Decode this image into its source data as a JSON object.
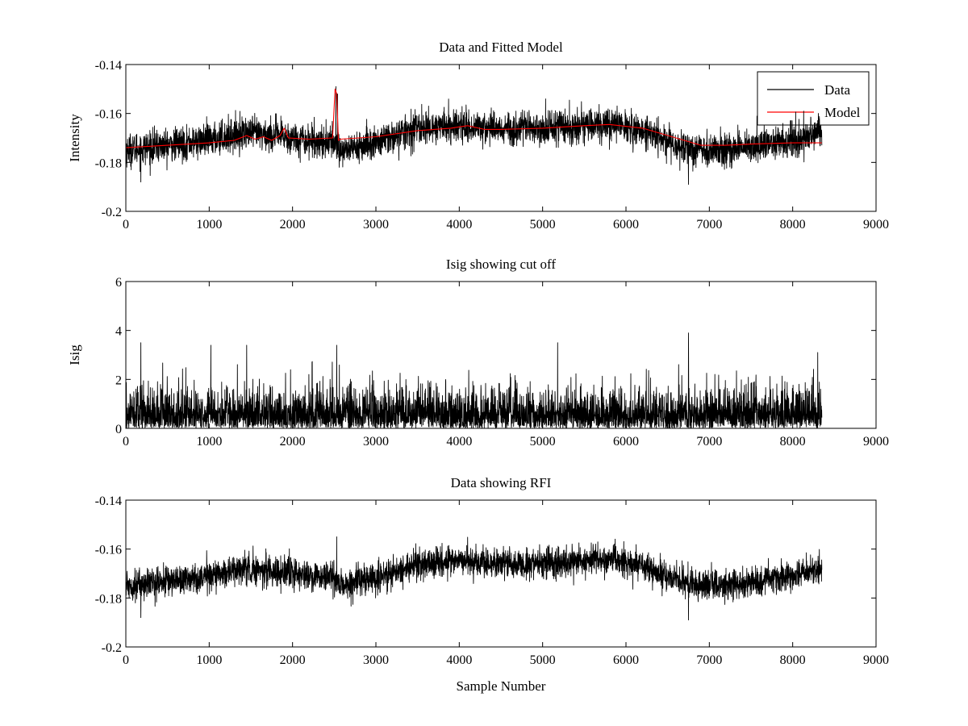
{
  "chart_data": [
    {
      "type": "line",
      "title": "Data and Fitted Model",
      "xlabel": "",
      "ylabel": "Intensity",
      "xlim": [
        0,
        9000
      ],
      "ylim": [
        -0.2,
        -0.14
      ],
      "xticks": [
        "0",
        "1000",
        "2000",
        "3000",
        "4000",
        "5000",
        "6000",
        "7000",
        "8000",
        "9000"
      ],
      "yticks": [
        "-0.2",
        "-0.18",
        "-0.16",
        "-0.14"
      ],
      "legend": {
        "position": "top-right",
        "entries": [
          "Data",
          "Model"
        ]
      },
      "series": [
        {
          "name": "Data",
          "color": "#000000",
          "kind": "noisy",
          "x_range": [
            0,
            8350
          ],
          "noise": 0.006,
          "baseline_x": [
            0,
            500,
            1000,
            1400,
            1800,
            2200,
            2500,
            2600,
            3000,
            3500,
            4000,
            4500,
            5000,
            5500,
            5800,
            6200,
            6600,
            7000,
            7500,
            8000,
            8350
          ],
          "baseline_y": [
            -0.175,
            -0.173,
            -0.171,
            -0.168,
            -0.169,
            -0.171,
            -0.172,
            -0.175,
            -0.172,
            -0.166,
            -0.165,
            -0.166,
            -0.166,
            -0.165,
            -0.164,
            -0.167,
            -0.173,
            -0.175,
            -0.174,
            -0.171,
            -0.168
          ],
          "spikes": [
            {
              "x": 2520,
              "y": -0.149
            },
            {
              "x": 2540,
              "y": -0.152
            },
            {
              "x": 2560,
              "y": -0.182
            },
            {
              "x": 6750,
              "y": -0.189
            },
            {
              "x": 180,
              "y": -0.188
            }
          ]
        },
        {
          "name": "Model",
          "color": "#ff0000",
          "kind": "smooth",
          "x": [
            0,
            500,
            1000,
            1300,
            1450,
            1550,
            1650,
            1750,
            1850,
            1900,
            1950,
            2200,
            2480,
            2510,
            2530,
            2550,
            2580,
            3000,
            3500,
            3900,
            4000,
            4100,
            4300,
            4500,
            5000,
            5500,
            5800,
            6200,
            6600,
            6900,
            7200,
            7500,
            8000,
            8350
          ],
          "y": [
            -0.174,
            -0.173,
            -0.172,
            -0.171,
            -0.169,
            -0.1705,
            -0.1695,
            -0.171,
            -0.169,
            -0.166,
            -0.17,
            -0.1705,
            -0.17,
            -0.15,
            -0.152,
            -0.171,
            -0.1705,
            -0.1695,
            -0.167,
            -0.166,
            -0.1655,
            -0.165,
            -0.1665,
            -0.1665,
            -0.166,
            -0.165,
            -0.1645,
            -0.166,
            -0.17,
            -0.173,
            -0.173,
            -0.1725,
            -0.172,
            -0.172
          ]
        }
      ]
    },
    {
      "type": "line",
      "title": "Isig showing cut off",
      "xlabel": "",
      "ylabel": "Isig",
      "xlim": [
        0,
        9000
      ],
      "ylim": [
        0,
        6
      ],
      "xticks": [
        "0",
        "1000",
        "2000",
        "3000",
        "4000",
        "5000",
        "6000",
        "7000",
        "8000",
        "9000"
      ],
      "yticks": [
        "0",
        "2",
        "4",
        "6"
      ],
      "series": [
        {
          "color": "#000000",
          "kind": "abs-noise",
          "x_range": [
            0,
            8350
          ],
          "scale": 0.8,
          "peaks": [
            {
              "x": 1450,
              "y": 3.4
            },
            {
              "x": 1020,
              "y": 3.4
            },
            {
              "x": 2530,
              "y": 3.4
            },
            {
              "x": 6750,
              "y": 3.9
            },
            {
              "x": 5180,
              "y": 3.5
            },
            {
              "x": 8300,
              "y": 3.1
            },
            {
              "x": 180,
              "y": 3.5
            }
          ]
        }
      ]
    },
    {
      "type": "line",
      "title": "Data showing RFI",
      "xlabel": "Sample Number",
      "ylabel": "",
      "xlim": [
        0,
        9000
      ],
      "ylim": [
        -0.2,
        -0.14
      ],
      "xticks": [
        "0",
        "1000",
        "2000",
        "3000",
        "4000",
        "5000",
        "6000",
        "7000",
        "8000",
        "9000"
      ],
      "yticks": [
        "-0.2",
        "-0.18",
        "-0.16",
        "-0.14"
      ],
      "series": [
        {
          "color": "#000000",
          "kind": "noisy",
          "x_range": [
            0,
            8350
          ],
          "noise": 0.0055,
          "baseline_x": [
            0,
            500,
            1000,
            1400,
            1800,
            2200,
            2500,
            2600,
            3000,
            3500,
            4000,
            4500,
            5000,
            5500,
            5800,
            6200,
            6600,
            7000,
            7500,
            8000,
            8350
          ],
          "baseline_y": [
            -0.175,
            -0.173,
            -0.171,
            -0.168,
            -0.169,
            -0.171,
            -0.172,
            -0.175,
            -0.172,
            -0.166,
            -0.165,
            -0.166,
            -0.166,
            -0.165,
            -0.164,
            -0.167,
            -0.173,
            -0.175,
            -0.174,
            -0.171,
            -0.168
          ],
          "spikes": [
            {
              "x": 2530,
              "y": -0.155
            },
            {
              "x": 6750,
              "y": -0.189
            },
            {
              "x": 180,
              "y": -0.188
            }
          ]
        }
      ]
    }
  ]
}
